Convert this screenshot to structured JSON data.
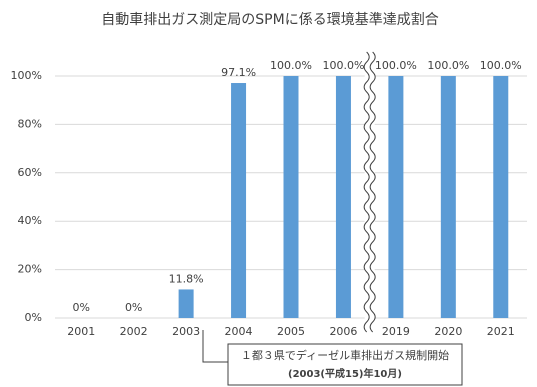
{
  "chart_data": {
    "type": "bar",
    "title": "自動車排出ガス測定局のSPMに係る環境基準達成割合",
    "categories": [
      "2001",
      "2002",
      "2003",
      "2004",
      "2005",
      "2006",
      "2019",
      "2020",
      "2021"
    ],
    "values": [
      0,
      0,
      11.8,
      97.1,
      100,
      100,
      100,
      100,
      100
    ],
    "value_labels": [
      "0%",
      "0%",
      "11.8%",
      "97.1%",
      "100.0%",
      "100.0%",
      "100.0%",
      "100.0%",
      "100.0%"
    ],
    "color": "#5b9bd5",
    "ylim": [
      0,
      100
    ],
    "yticks": [
      {
        "value": 0,
        "label": "0%"
      },
      {
        "value": 20,
        "label": "20%"
      },
      {
        "value": 40,
        "label": "40%"
      },
      {
        "value": 60,
        "label": "60%"
      },
      {
        "value": 80,
        "label": "80%"
      },
      {
        "value": 100,
        "label": "100%"
      }
    ],
    "grid": true,
    "annotation": [
      "１都３県でディーゼル車排出ガス規制開始",
      "(2003(平成15)年10月)"
    ]
  }
}
